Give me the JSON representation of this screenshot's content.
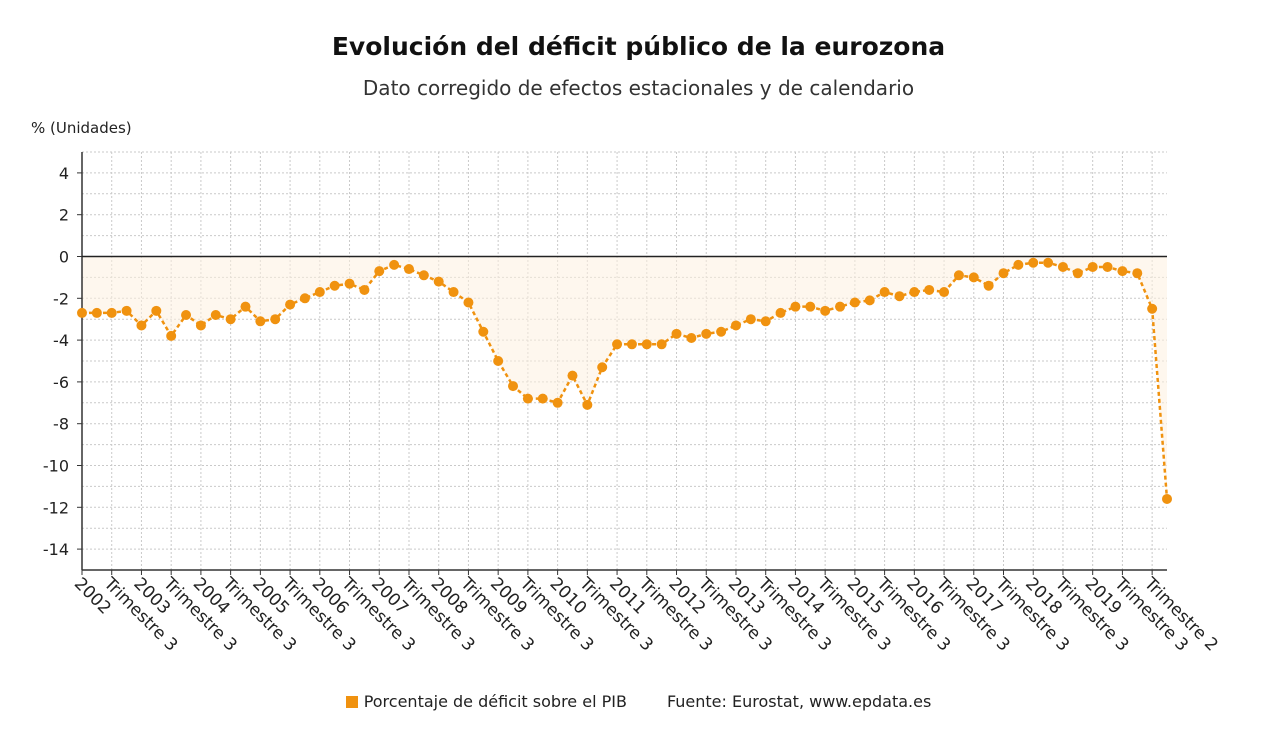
{
  "chart_data": {
    "type": "line",
    "title": "Evolución del déficit público de la eurozona",
    "subtitle": "Dato corregido de efectos estacionales y de calendario",
    "ylabel": "% (Unidades)",
    "ylim": [
      -15,
      5
    ],
    "yticks": [
      4,
      2,
      0,
      -2,
      -4,
      -6,
      -8,
      -10,
      -12,
      -14
    ],
    "grid": true,
    "x_tick_labels": [
      "2002",
      "Trimestre 3",
      "2003",
      "Trimestre 3",
      "2004",
      "Trimestre 3",
      "2005",
      "Trimestre 3",
      "2006",
      "Trimestre 3",
      "2007",
      "Trimestre 3",
      "2008",
      "Trimestre 3",
      "2009",
      "Trimestre 3",
      "2010",
      "Trimestre 3",
      "2011",
      "Trimestre 3",
      "2012",
      "Trimestre 3",
      "2013",
      "Trimestre 3",
      "2014",
      "Trimestre 3",
      "2015",
      "Trimestre 3",
      "2016",
      "Trimestre 3",
      "2017",
      "Trimestre 3",
      "2018",
      "Trimestre 3",
      "2019",
      "Trimestre 3",
      "Trimestre 2"
    ],
    "series": [
      {
        "name": "Porcentaje de déficit sobre el PIB",
        "color": "#f0920f",
        "values": [
          -2.7,
          -2.7,
          -2.7,
          -2.6,
          -3.3,
          -2.6,
          -3.8,
          -2.8,
          -3.3,
          -2.8,
          -3.0,
          -2.4,
          -3.1,
          -3.0,
          -2.3,
          -2.0,
          -1.7,
          -1.4,
          -1.3,
          -1.6,
          -0.7,
          -0.4,
          -0.6,
          -0.9,
          -1.2,
          -1.7,
          -2.2,
          -3.6,
          -5.0,
          -6.2,
          -6.8,
          -6.8,
          -7.0,
          -5.7,
          -7.1,
          -5.3,
          -4.2,
          -4.2,
          -4.2,
          -4.2,
          -3.7,
          -3.9,
          -3.7,
          -3.6,
          -3.3,
          -3.0,
          -3.1,
          -2.7,
          -2.4,
          -2.4,
          -2.6,
          -2.4,
          -2.2,
          -2.1,
          -1.7,
          -1.9,
          -1.7,
          -1.6,
          -1.7,
          -0.9,
          -1.0,
          -1.4,
          -0.8,
          -0.4,
          -0.3,
          -0.3,
          -0.5,
          -0.8,
          -0.5,
          -0.5,
          -0.7,
          -0.8,
          -2.5,
          -11.6
        ]
      }
    ]
  },
  "legend": {
    "series_label": "Porcentaje de déficit sobre el PIB",
    "source": "Fuente: Eurostat, www.epdata.es"
  }
}
